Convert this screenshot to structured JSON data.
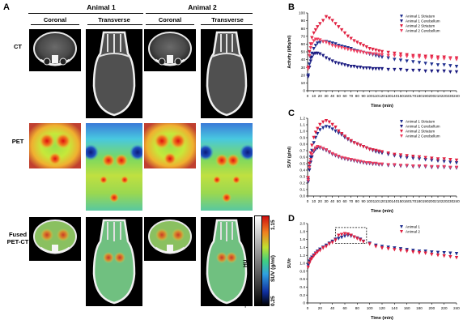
{
  "panel_a": {
    "letter": "A",
    "animal1": "Animal 1",
    "animal2": "Animal 2",
    "coronal": "Coronal",
    "transverse": "Transverse",
    "row_ct": "CT",
    "row_pet": "PET",
    "row_fused_1": "Fused",
    "row_fused_2": "PET-CT",
    "colorbar": {
      "hu_label": "HU",
      "hu_max": "2000",
      "hu_min": "-1000",
      "suv_label": "SUV (g/ml)",
      "suv_max": "1.15",
      "suv_min": "0.25"
    }
  },
  "chart_data": [
    {
      "panel": "B",
      "type": "scatter",
      "xlabel": "Time (min)",
      "ylabel": "Activity (kBq/ml)",
      "xlim": [
        0,
        240
      ],
      "ylim": [
        0,
        100
      ],
      "xticks": [
        "0",
        "10",
        "20",
        "30",
        "40",
        "50",
        "60",
        "70",
        "80",
        "90",
        "100",
        "110",
        "120",
        "130",
        "140",
        "150",
        "160",
        "170",
        "180",
        "190",
        "200",
        "210",
        "220",
        "230",
        "240"
      ],
      "yticks": [
        "0",
        "10",
        "20",
        "30",
        "40",
        "50",
        "60",
        "70",
        "80",
        "90",
        "100"
      ],
      "legend_position": "top-right",
      "series": [
        {
          "name": "Animal 1 Striatum",
          "color": "#1f2f8f",
          "marker": "triangle-down",
          "x": [
            1,
            3,
            5,
            7,
            10,
            13,
            16,
            20,
            25,
            30,
            35,
            40,
            45,
            50,
            55,
            60,
            65,
            70,
            75,
            80,
            85,
            90,
            95,
            100,
            105,
            110,
            115,
            120,
            130,
            140,
            150,
            160,
            170,
            180,
            190,
            200,
            210,
            220,
            230,
            240
          ],
          "y": [
            20,
            34,
            42,
            48,
            54,
            58,
            61,
            62,
            63,
            63,
            62,
            61,
            60,
            58,
            57,
            56,
            55,
            54,
            52,
            51,
            50,
            49,
            48,
            47,
            46,
            45,
            44,
            43,
            42,
            40,
            39,
            38,
            37,
            36,
            35,
            34,
            33,
            33,
            32,
            31
          ]
        },
        {
          "name": "Animal 1 Cerebellum",
          "color": "#1a1a80",
          "marker": "triangle-down",
          "x": [
            1,
            3,
            5,
            7,
            10,
            13,
            16,
            20,
            25,
            30,
            35,
            40,
            45,
            50,
            55,
            60,
            65,
            70,
            75,
            80,
            85,
            90,
            95,
            100,
            105,
            110,
            115,
            120,
            130,
            140,
            150,
            160,
            170,
            180,
            190,
            200,
            210,
            220,
            230,
            240
          ],
          "y": [
            18,
            30,
            38,
            43,
            47,
            48,
            48,
            47,
            45,
            42,
            40,
            38,
            36,
            35,
            34,
            33,
            32,
            31,
            31,
            30,
            30,
            29,
            29,
            29,
            28,
            28,
            28,
            28,
            27,
            27,
            27,
            26,
            26,
            26,
            25,
            25,
            25,
            25,
            24,
            24
          ]
        },
        {
          "name": "Animal 2 Striatum",
          "color": "#e02040",
          "marker": "triangle-down",
          "x": [
            1,
            3,
            5,
            7,
            10,
            13,
            16,
            20,
            25,
            30,
            35,
            40,
            45,
            50,
            55,
            60,
            65,
            70,
            75,
            80,
            85,
            90,
            95,
            100,
            105,
            110,
            115,
            120,
            130,
            140,
            150,
            160,
            170,
            180,
            190,
            200,
            210,
            220,
            230,
            240
          ],
          "y": [
            30,
            50,
            60,
            68,
            74,
            78,
            82,
            86,
            90,
            95,
            93,
            90,
            86,
            82,
            78,
            74,
            70,
            67,
            64,
            62,
            60,
            58,
            56,
            54,
            53,
            52,
            51,
            50,
            49,
            48,
            47,
            46,
            45,
            45,
            44,
            44,
            43,
            43,
            42,
            42
          ]
        },
        {
          "name": "Animal 2 Cerebellum",
          "color": "#f04060",
          "marker": "triangle-down",
          "x": [
            1,
            3,
            5,
            7,
            10,
            13,
            16,
            20,
            25,
            30,
            35,
            40,
            45,
            50,
            55,
            60,
            65,
            70,
            75,
            80,
            85,
            90,
            95,
            100,
            105,
            110,
            115,
            120,
            130,
            140,
            150,
            160,
            170,
            180,
            190,
            200,
            210,
            220,
            230,
            240
          ],
          "y": [
            28,
            45,
            55,
            60,
            64,
            66,
            66,
            65,
            63,
            62,
            60,
            58,
            57,
            56,
            55,
            54,
            53,
            52,
            51,
            50,
            50,
            49,
            48,
            48,
            47,
            47,
            46,
            46,
            45,
            45,
            44,
            44,
            43,
            43,
            42,
            42,
            41,
            41,
            41,
            40
          ]
        }
      ]
    },
    {
      "panel": "C",
      "type": "scatter",
      "xlabel": "Time (min)",
      "ylabel": "SUV (g/ml)",
      "xlim": [
        0,
        240
      ],
      "ylim": [
        0,
        1.2
      ],
      "xticks": [
        "0",
        "10",
        "20",
        "30",
        "40",
        "50",
        "60",
        "70",
        "80",
        "90",
        "100",
        "110",
        "120",
        "130",
        "140",
        "150",
        "160",
        "170",
        "180",
        "190",
        "200",
        "210",
        "220",
        "230",
        "240"
      ],
      "yticks": [
        "0.0",
        "0.1",
        "0.2",
        "0.3",
        "0.4",
        "0.5",
        "0.6",
        "0.7",
        "0.8",
        "0.9",
        "1.0",
        "1.1",
        "1.2"
      ],
      "legend_position": "top-right",
      "series": [
        {
          "name": "Animal 1 Striatum",
          "color": "#1f2f8f",
          "marker": "triangle-down",
          "x": [
            1,
            3,
            5,
            7,
            10,
            13,
            16,
            20,
            25,
            30,
            35,
            40,
            45,
            50,
            55,
            60,
            65,
            70,
            75,
            80,
            85,
            90,
            95,
            100,
            105,
            110,
            115,
            120,
            130,
            140,
            150,
            160,
            170,
            180,
            190,
            200,
            210,
            220,
            230,
            240
          ],
          "y": [
            0.25,
            0.45,
            0.6,
            0.7,
            0.82,
            0.9,
            0.96,
            1.02,
            1.05,
            1.07,
            1.06,
            1.03,
            1.0,
            0.97,
            0.94,
            0.9,
            0.87,
            0.84,
            0.82,
            0.8,
            0.78,
            0.76,
            0.74,
            0.72,
            0.7,
            0.68,
            0.67,
            0.66,
            0.64,
            0.62,
            0.6,
            0.59,
            0.58,
            0.57,
            0.56,
            0.55,
            0.54,
            0.53,
            0.52,
            0.51
          ]
        },
        {
          "name": "Animal 1 Cerebellum",
          "color": "#1a1a80",
          "marker": "triangle-down",
          "x": [
            1,
            3,
            5,
            7,
            10,
            13,
            16,
            20,
            25,
            30,
            35,
            40,
            45,
            50,
            55,
            60,
            65,
            70,
            75,
            80,
            85,
            90,
            95,
            100,
            105,
            110,
            115,
            120,
            130,
            140,
            150,
            160,
            170,
            180,
            190,
            200,
            210,
            220,
            230,
            240
          ],
          "y": [
            0.22,
            0.4,
            0.52,
            0.6,
            0.68,
            0.72,
            0.74,
            0.74,
            0.72,
            0.7,
            0.67,
            0.64,
            0.62,
            0.6,
            0.58,
            0.57,
            0.56,
            0.55,
            0.54,
            0.53,
            0.52,
            0.51,
            0.5,
            0.5,
            0.49,
            0.49,
            0.48,
            0.48,
            0.47,
            0.47,
            0.46,
            0.46,
            0.45,
            0.45,
            0.45,
            0.44,
            0.44,
            0.44,
            0.43,
            0.43
          ]
        },
        {
          "name": "Animal 2 Striatum",
          "color": "#e02040",
          "marker": "triangle-down",
          "x": [
            1,
            3,
            5,
            7,
            10,
            13,
            16,
            20,
            25,
            30,
            35,
            40,
            45,
            50,
            55,
            60,
            65,
            70,
            75,
            80,
            85,
            90,
            95,
            100,
            105,
            110,
            115,
            120,
            130,
            140,
            150,
            160,
            170,
            180,
            190,
            200,
            210,
            220,
            230,
            240
          ],
          "y": [
            0.28,
            0.5,
            0.66,
            0.78,
            0.9,
            0.98,
            1.04,
            1.1,
            1.14,
            1.16,
            1.14,
            1.1,
            1.06,
            1.0,
            0.96,
            0.92,
            0.88,
            0.85,
            0.82,
            0.8,
            0.78,
            0.76,
            0.74,
            0.72,
            0.71,
            0.7,
            0.69,
            0.68,
            0.66,
            0.64,
            0.63,
            0.62,
            0.61,
            0.6,
            0.59,
            0.58,
            0.57,
            0.57,
            0.56,
            0.55
          ]
        },
        {
          "name": "Animal 2 Cerebellum",
          "color": "#f04060",
          "marker": "triangle-down",
          "x": [
            1,
            3,
            5,
            7,
            10,
            13,
            16,
            20,
            25,
            30,
            35,
            40,
            45,
            50,
            55,
            60,
            65,
            70,
            75,
            80,
            85,
            90,
            95,
            100,
            105,
            110,
            115,
            120,
            130,
            140,
            150,
            160,
            170,
            180,
            190,
            200,
            210,
            220,
            230,
            240
          ],
          "y": [
            0.24,
            0.44,
            0.56,
            0.64,
            0.7,
            0.74,
            0.76,
            0.75,
            0.73,
            0.71,
            0.68,
            0.65,
            0.63,
            0.61,
            0.59,
            0.58,
            0.57,
            0.56,
            0.55,
            0.54,
            0.53,
            0.52,
            0.51,
            0.51,
            0.5,
            0.5,
            0.49,
            0.49,
            0.48,
            0.48,
            0.47,
            0.47,
            0.46,
            0.46,
            0.46,
            0.45,
            0.45,
            0.45,
            0.44,
            0.44
          ]
        }
      ]
    },
    {
      "panel": "D",
      "type": "scatter",
      "xlabel": "Time (min)",
      "ylabel": "SUVr",
      "xlim": [
        0,
        240
      ],
      "ylim": [
        0,
        2.0
      ],
      "xticks": [
        "0",
        "20",
        "40",
        "60",
        "80",
        "100",
        "120",
        "140",
        "160",
        "180",
        "200",
        "220",
        "240"
      ],
      "yticks": [
        "0",
        "0.2",
        "0.4",
        "0.6",
        "0.8",
        "1.0",
        "1.2",
        "1.4",
        "1.6",
        "1.8",
        "2.0"
      ],
      "legend_position": "top-right",
      "highlight_box": {
        "x": [
          45,
          95
        ],
        "y": [
          1.5,
          1.9
        ]
      },
      "series": [
        {
          "name": "Animal 1",
          "color": "#1f2f8f",
          "marker": "triangle-down",
          "x": [
            1,
            3,
            5,
            7,
            10,
            13,
            16,
            20,
            25,
            30,
            35,
            40,
            45,
            50,
            55,
            60,
            65,
            70,
            75,
            80,
            85,
            90,
            100,
            110,
            120,
            130,
            140,
            150,
            160,
            170,
            180,
            190,
            200,
            210,
            220,
            230,
            240
          ],
          "y": [
            0.95,
            1.05,
            1.1,
            1.15,
            1.2,
            1.25,
            1.3,
            1.35,
            1.4,
            1.45,
            1.5,
            1.55,
            1.6,
            1.62,
            1.65,
            1.68,
            1.7,
            1.68,
            1.66,
            1.63,
            1.6,
            1.55,
            1.5,
            1.45,
            1.42,
            1.4,
            1.38,
            1.36,
            1.34,
            1.32,
            1.3,
            1.3,
            1.28,
            1.27,
            1.26,
            1.25,
            1.24
          ]
        },
        {
          "name": "Animal 2",
          "color": "#e02040",
          "marker": "triangle-down",
          "x": [
            1,
            3,
            5,
            7,
            10,
            13,
            16,
            20,
            25,
            30,
            35,
            40,
            45,
            50,
            55,
            60,
            65,
            70,
            75,
            80,
            85,
            90,
            100,
            110,
            120,
            130,
            140,
            150,
            160,
            170,
            180,
            190,
            200,
            210,
            220,
            230,
            240
          ],
          "y": [
            0.9,
            1.0,
            1.08,
            1.12,
            1.18,
            1.24,
            1.28,
            1.32,
            1.38,
            1.42,
            1.48,
            1.52,
            1.58,
            1.7,
            1.72,
            1.74,
            1.73,
            1.7,
            1.66,
            1.62,
            1.58,
            1.54,
            1.48,
            1.42,
            1.38,
            1.36,
            1.34,
            1.32,
            1.3,
            1.28,
            1.26,
            1.25,
            1.22,
            1.2,
            1.18,
            1.16,
            1.14
          ]
        }
      ]
    }
  ]
}
